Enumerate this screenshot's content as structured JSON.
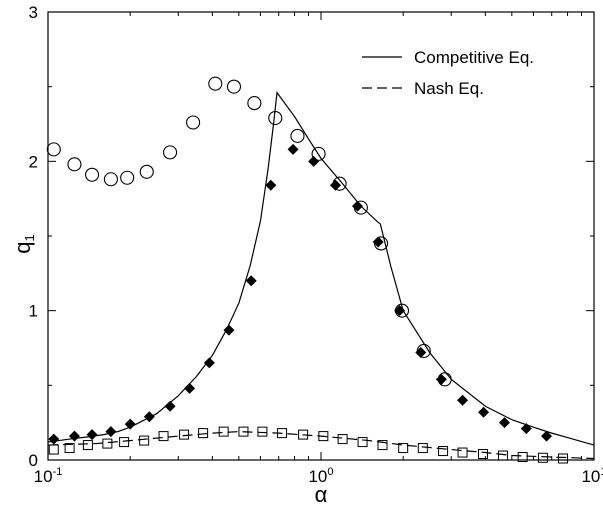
{
  "chart_data": {
    "type": "scatter",
    "title": "",
    "xlabel": "α",
    "ylabel_main": "q",
    "ylabel_sub": "1",
    "xscale": "log",
    "xlim": [
      0.1,
      10
    ],
    "ylim": [
      0,
      3
    ],
    "grid": false,
    "legend_position": "top-right",
    "x_ticks": [
      {
        "value": 0.1,
        "base": "10",
        "exp": "-1"
      },
      {
        "value": 1,
        "base": "10",
        "exp": "0"
      },
      {
        "value": 10,
        "base": "10",
        "exp": "1"
      }
    ],
    "y_ticks": [
      {
        "value": 0,
        "label": "0"
      },
      {
        "value": 1,
        "label": "1"
      },
      {
        "value": 2,
        "label": "2"
      },
      {
        "value": 3,
        "label": "3"
      }
    ],
    "legend": [
      {
        "label": "Competitive Eq.",
        "style": "solid"
      },
      {
        "label": "Nash Eq.",
        "style": "dashed"
      }
    ],
    "lines": [
      {
        "style": "solid",
        "x": [
          0.1,
          0.12,
          0.14,
          0.16,
          0.18,
          0.2,
          0.25,
          0.3,
          0.35,
          0.4,
          0.45,
          0.5,
          0.55,
          0.6,
          0.64,
          0.67,
          0.69,
          0.8,
          0.9,
          1.0,
          1.2,
          1.4,
          1.6,
          1.65,
          1.8,
          2.0,
          2.5,
          3.0,
          4.0,
          5.0,
          6.0,
          7.0,
          8.0,
          10.0
        ],
        "y": [
          0.12,
          0.14,
          0.155,
          0.17,
          0.19,
          0.22,
          0.31,
          0.43,
          0.56,
          0.7,
          0.87,
          1.05,
          1.3,
          1.6,
          1.95,
          2.25,
          2.46,
          2.3,
          2.15,
          2.02,
          1.85,
          1.7,
          1.6,
          1.58,
          1.3,
          1.0,
          0.72,
          0.54,
          0.36,
          0.27,
          0.22,
          0.18,
          0.15,
          0.1
        ]
      },
      {
        "style": "dashed",
        "x": [
          0.1,
          0.15,
          0.2,
          0.3,
          0.4,
          0.5,
          0.7,
          1.0,
          1.5,
          2.0,
          3.0,
          4.0,
          5.0,
          7.0,
          10.0
        ],
        "y": [
          0.1,
          0.11,
          0.13,
          0.16,
          0.18,
          0.19,
          0.18,
          0.16,
          0.13,
          0.1,
          0.07,
          0.05,
          0.03,
          0.02,
          0.01
        ]
      }
    ],
    "series": [
      {
        "marker": "open-circle",
        "x": [
          0.105,
          0.125,
          0.145,
          0.17,
          0.195,
          0.23,
          0.28,
          0.34,
          0.41,
          0.48,
          0.57,
          0.68,
          0.82,
          0.98,
          1.17,
          1.4,
          1.66,
          1.98,
          2.38,
          2.84
        ],
        "y": [
          2.08,
          1.98,
          1.91,
          1.88,
          1.89,
          1.93,
          2.06,
          2.26,
          2.52,
          2.5,
          2.39,
          2.29,
          2.17,
          2.05,
          1.85,
          1.69,
          1.45,
          1.0,
          0.73,
          0.54
        ]
      },
      {
        "marker": "filled-diamond",
        "x": [
          0.105,
          0.125,
          0.145,
          0.17,
          0.2,
          0.235,
          0.28,
          0.33,
          0.39,
          0.46,
          0.555,
          0.655,
          0.79,
          0.94,
          1.13,
          1.36,
          1.62,
          1.94,
          2.32,
          2.76,
          3.3,
          3.94,
          4.7,
          5.65,
          6.7
        ],
        "y": [
          0.14,
          0.16,
          0.17,
          0.19,
          0.24,
          0.29,
          0.36,
          0.48,
          0.65,
          0.87,
          1.2,
          1.84,
          2.08,
          2.0,
          1.84,
          1.7,
          1.46,
          1.0,
          0.72,
          0.54,
          0.4,
          0.32,
          0.25,
          0.21,
          0.16
        ]
      },
      {
        "marker": "open-square",
        "x": [
          0.105,
          0.12,
          0.14,
          0.165,
          0.19,
          0.225,
          0.265,
          0.315,
          0.37,
          0.44,
          0.52,
          0.61,
          0.72,
          0.86,
          1.02,
          1.2,
          1.42,
          1.68,
          2.0,
          2.36,
          2.8,
          3.3,
          3.92,
          4.64,
          5.48,
          6.5,
          7.7
        ],
        "y": [
          0.07,
          0.08,
          0.1,
          0.11,
          0.12,
          0.13,
          0.16,
          0.17,
          0.18,
          0.19,
          0.19,
          0.19,
          0.18,
          0.17,
          0.16,
          0.14,
          0.12,
          0.1,
          0.08,
          0.08,
          0.06,
          0.05,
          0.04,
          0.03,
          0.02,
          0.015,
          0.01
        ]
      }
    ]
  }
}
